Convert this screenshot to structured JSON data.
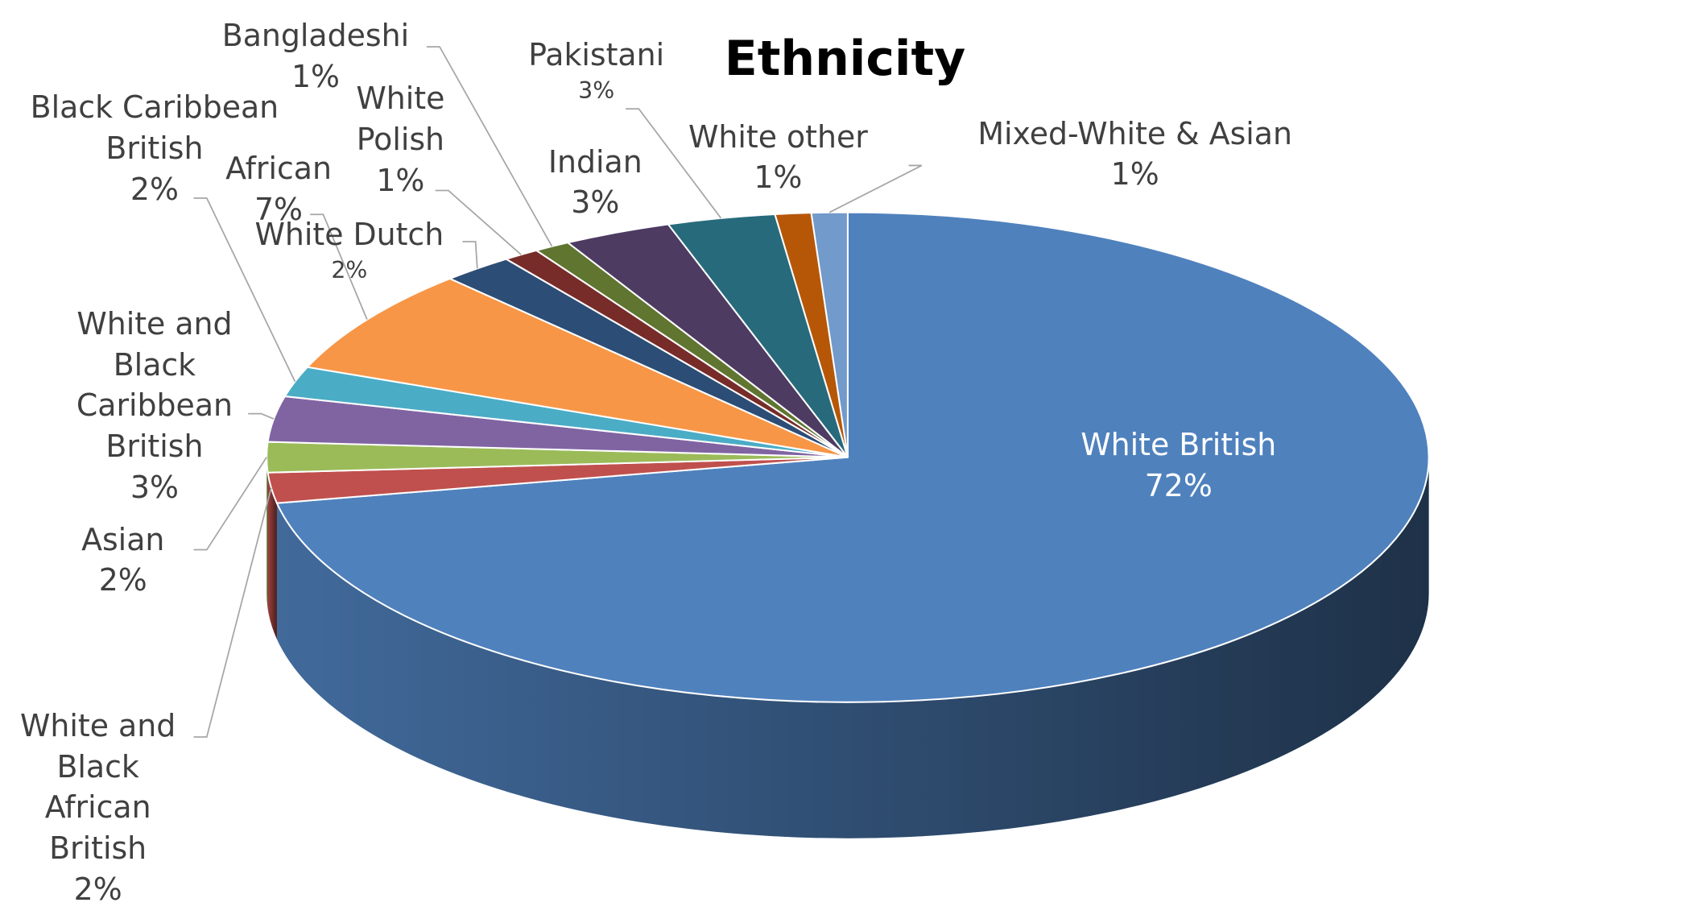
{
  "chart_data": {
    "type": "pie",
    "title": "Ethnicity",
    "categories": [
      "White British",
      "White and Black African British",
      "Asian",
      "White and Black Caribbean British",
      "Black Caribbean British",
      "African",
      "White Dutch",
      "White Polish",
      "Bangladeshi",
      "Indian",
      "Pakistani",
      "White other",
      "Mixed-White & Asian"
    ],
    "values": [
      72,
      2,
      2,
      3,
      2,
      7,
      2,
      1,
      1,
      3,
      3,
      1,
      1
    ],
    "value_labels": [
      "72%",
      "2%",
      "2%",
      "3%",
      "2%",
      "7%",
      "2%",
      "1%",
      "1%",
      "3%",
      "3%",
      "1%",
      "1%"
    ],
    "colors": [
      "#4f81bd",
      "#c0504d",
      "#9bbb59",
      "#8064a2",
      "#4bacc6",
      "#f79646",
      "#2c4d75",
      "#772c2a",
      "#5f7530",
      "#4d3b62",
      "#276a7c",
      "#b65708",
      "#729aca"
    ]
  }
}
